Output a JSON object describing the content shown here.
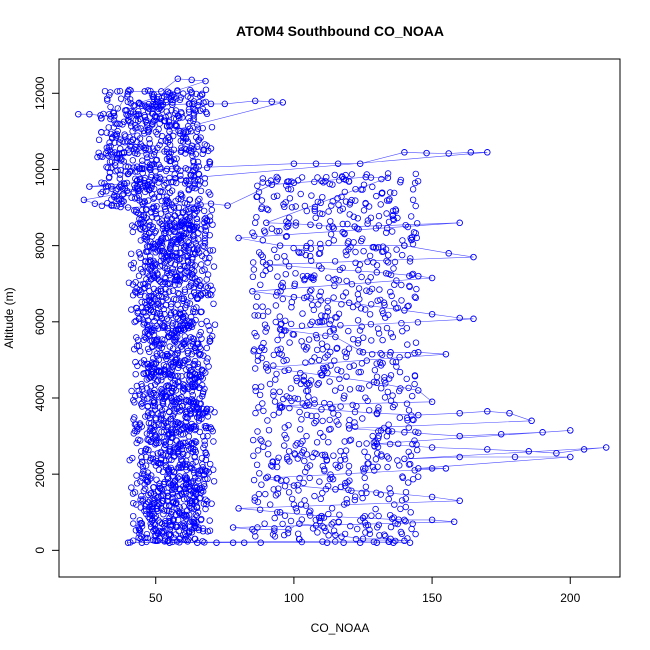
{
  "chart_data": {
    "type": "scatter",
    "title": "ATOM4 Southbound CO_NOAA",
    "xlabel": "CO_NOAA",
    "ylabel": "Altitude (m)",
    "xlim": [
      15,
      218
    ],
    "ylim": [
      -700,
      12900
    ],
    "xticks": [
      50,
      100,
      150,
      200
    ],
    "yticks": [
      0,
      2000,
      4000,
      6000,
      8000,
      10000,
      12000
    ],
    "point_style": "open circles connected by lines",
    "colors": {
      "series": "#0000ff"
    },
    "series": [
      {
        "main_column_x": [
          [
            40,
            70
          ],
          [
            42,
            72
          ]
        ],
        "points": [
          [
            22,
            11450
          ],
          [
            26,
            11450
          ],
          [
            30,
            11420
          ],
          [
            35,
            11400
          ],
          [
            40,
            12050
          ],
          [
            46,
            12050
          ],
          [
            52,
            12050
          ],
          [
            58,
            12380
          ],
          [
            63,
            12350
          ],
          [
            68,
            12320
          ],
          [
            44,
            11750
          ],
          [
            50,
            11700
          ],
          [
            56,
            11700
          ],
          [
            62,
            11720
          ],
          [
            70,
            11720
          ],
          [
            75,
            11720
          ],
          [
            86,
            11800
          ],
          [
            92,
            11780
          ],
          [
            96,
            11760
          ],
          [
            55,
            11000
          ],
          [
            60,
            10850
          ],
          [
            65,
            10600
          ],
          [
            70,
            10550
          ],
          [
            30,
            10350
          ],
          [
            36,
            10300
          ],
          [
            42,
            10050
          ],
          [
            48,
            10000
          ],
          [
            100,
            10150
          ],
          [
            108,
            10150
          ],
          [
            116,
            10150
          ],
          [
            124,
            10150
          ],
          [
            140,
            10450
          ],
          [
            148,
            10430
          ],
          [
            156,
            10420
          ],
          [
            164,
            10450
          ],
          [
            170,
            10450
          ],
          [
            26,
            9550
          ],
          [
            32,
            9550
          ],
          [
            38,
            9500
          ],
          [
            44,
            9450
          ],
          [
            24,
            9200
          ],
          [
            28,
            9100
          ],
          [
            34,
            9050
          ],
          [
            40,
            9000
          ],
          [
            70,
            9100
          ],
          [
            76,
            9050
          ],
          [
            92,
            9600
          ],
          [
            100,
            9650
          ],
          [
            110,
            9700
          ],
          [
            118,
            9750
          ],
          [
            126,
            9800
          ],
          [
            134,
            9780
          ],
          [
            90,
            8600
          ],
          [
            98,
            8580
          ],
          [
            106,
            8550
          ],
          [
            114,
            8500
          ],
          [
            122,
            8500
          ],
          [
            160,
            8600
          ],
          [
            80,
            8200
          ],
          [
            95,
            8000
          ],
          [
            140,
            8000
          ],
          [
            156,
            7800
          ],
          [
            165,
            7700
          ],
          [
            90,
            7500
          ],
          [
            110,
            7400
          ],
          [
            130,
            7300
          ],
          [
            145,
            7200
          ],
          [
            150,
            7150
          ],
          [
            85,
            6800
          ],
          [
            100,
            6650
          ],
          [
            120,
            6500
          ],
          [
            140,
            6300
          ],
          [
            150,
            6200
          ],
          [
            160,
            6100
          ],
          [
            165,
            6080
          ],
          [
            95,
            5800
          ],
          [
            115,
            5600
          ],
          [
            125,
            5200
          ],
          [
            135,
            5200
          ],
          [
            145,
            5200
          ],
          [
            155,
            5150
          ],
          [
            90,
            4800
          ],
          [
            110,
            4600
          ],
          [
            130,
            4400
          ],
          [
            145,
            4200
          ],
          [
            150,
            3900
          ],
          [
            95,
            3800
          ],
          [
            110,
            3700
          ],
          [
            130,
            3600
          ],
          [
            145,
            3550
          ],
          [
            160,
            3600
          ],
          [
            170,
            3650
          ],
          [
            178,
            3600
          ],
          [
            186,
            3400
          ],
          [
            120,
            3200
          ],
          [
            140,
            3100
          ],
          [
            160,
            3000
          ],
          [
            175,
            3050
          ],
          [
            190,
            3100
          ],
          [
            200,
            3150
          ],
          [
            130,
            2800
          ],
          [
            150,
            2700
          ],
          [
            170,
            2650
          ],
          [
            185,
            2600
          ],
          [
            195,
            2550
          ],
          [
            205,
            2650
          ],
          [
            213,
            2700
          ],
          [
            140,
            2400
          ],
          [
            160,
            2450
          ],
          [
            180,
            2450
          ],
          [
            200,
            2450
          ],
          [
            145,
            2150
          ],
          [
            150,
            2150
          ],
          [
            155,
            2150
          ],
          [
            90,
            1900
          ],
          [
            100,
            1700
          ],
          [
            115,
            1600
          ],
          [
            135,
            1500
          ],
          [
            150,
            1400
          ],
          [
            160,
            1300
          ],
          [
            80,
            1100
          ],
          [
            95,
            1000
          ],
          [
            110,
            900
          ],
          [
            125,
            850
          ],
          [
            140,
            800
          ],
          [
            150,
            800
          ],
          [
            158,
            750
          ],
          [
            78,
            600
          ],
          [
            85,
            550
          ],
          [
            98,
            550
          ],
          [
            102,
            700
          ],
          [
            108,
            650
          ],
          [
            115,
            400
          ],
          [
            125,
            300
          ],
          [
            135,
            300
          ],
          [
            140,
            250
          ],
          [
            40,
            200
          ],
          [
            45,
            200
          ],
          [
            55,
            200
          ],
          [
            65,
            200
          ],
          [
            72,
            200
          ],
          [
            78,
            200
          ],
          [
            82,
            200
          ],
          [
            88,
            200
          ],
          [
            112,
            200
          ],
          [
            118,
            200
          ],
          [
            124,
            200
          ],
          [
            130,
            200
          ],
          [
            136,
            200
          ],
          [
            142,
            200
          ]
        ]
      }
    ]
  }
}
